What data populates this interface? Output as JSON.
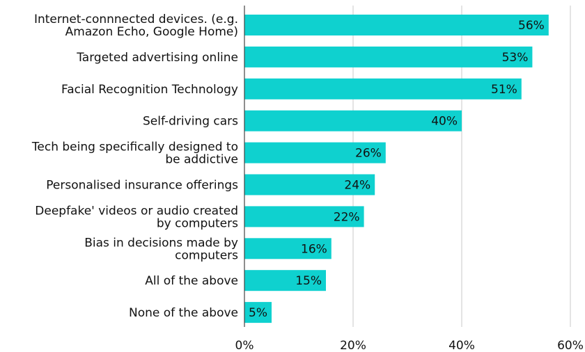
{
  "chart_data": {
    "type": "bar",
    "orientation": "horizontal",
    "title": "",
    "xlabel": "",
    "ylabel": "",
    "categories": [
      [
        "Internet-connnected devices. (e.g.",
        "Amazon Echo, Google Home)"
      ],
      [
        "Targeted advertising online"
      ],
      [
        "Facial Recognition Technology"
      ],
      [
        "Self-driving cars"
      ],
      [
        "Tech being specifically designed to",
        "be addictive"
      ],
      [
        "Personalised insurance offerings"
      ],
      [
        "Deepfake' videos or audio created",
        "by computers"
      ],
      [
        "Bias in decisions made by",
        "computers"
      ],
      [
        "All of the above"
      ],
      [
        "None of the above"
      ]
    ],
    "values": [
      56,
      53,
      51,
      40,
      26,
      24,
      22,
      16,
      15,
      5
    ],
    "value_labels": [
      "56%",
      "53%",
      "51%",
      "40%",
      "26%",
      "24%",
      "22%",
      "16%",
      "15%",
      "5%"
    ],
    "xlim": [
      0,
      60
    ],
    "xticks": [
      0,
      20,
      40,
      60
    ],
    "xtick_labels": [
      "0%",
      "20%",
      "40%",
      "60%"
    ],
    "grid": "vertical",
    "legend": "none",
    "bar_color": "#0fd1cf"
  }
}
